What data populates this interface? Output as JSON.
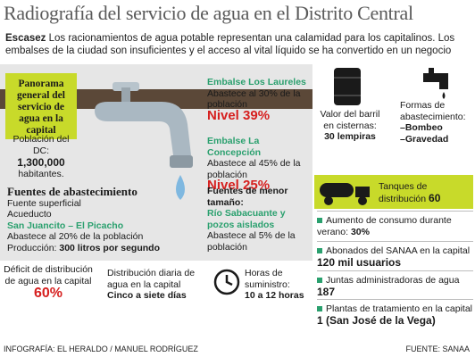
{
  "title": "Radiografía del servicio de agua en el Distrito Central",
  "intro": {
    "lead": "Escasez",
    "text": " Los racionamientos de agua potable representan una calamidad para los capitalinos. Los embalses de la ciudad son insuficientes y el acceso al vital líquido se ha convertido en un negocio"
  },
  "panorama": "Panorama general del servicio de agua en la capital",
  "poblacion": {
    "label": "Población del DC:",
    "value": "1,300,000",
    "unit": "habitantes."
  },
  "laureles": {
    "name": "Embalse Los Laureles",
    "desc": "Abastece al 30% de la población",
    "nivel": "Nivel 39%"
  },
  "concepcion": {
    "name": "Embalse La Concepción",
    "desc": "Abastece al 45% de la población",
    "nivel": "Nivel 25%"
  },
  "fuentes": {
    "heading": "Fuentes de abastecimiento",
    "l1": "Fuente superficial",
    "l2": "Acueducto",
    "green": "San Juancito – El Picacho",
    "l3": "Abastece al  20%  de la población",
    "prod_label": "Producción: ",
    "prod_value": "300 litros por segundo"
  },
  "menor": {
    "heading": "Fuentes de menor tamaño:",
    "green": "Río Sabacuante y pozos aislados",
    "desc": "Abastece al 5% de la población"
  },
  "deficit": {
    "label": "Déficit de distribución de agua en la capital",
    "value": "60%"
  },
  "distribucion": {
    "label": "Distribución diaria de agua en la capital",
    "value": "Cinco a siete días"
  },
  "horas": {
    "label": "Horas de suministro:",
    "value": "10 a 12 horas"
  },
  "barril": {
    "label": "Valor del barril en cisternas:",
    "value": "30 lempiras"
  },
  "formas": {
    "label": "Formas de abastecimiento:",
    "l1": "–Bombeo",
    "l2": "–Gravedad"
  },
  "tanques": {
    "label": "Tanques de distribución",
    "value": "60"
  },
  "consumo": {
    "label": "Aumento de consumo durante verano: ",
    "value": "30%"
  },
  "abonados": {
    "label": "Abonados del SANAA  en la capital ",
    "value": "120  mil usuarios"
  },
  "juntas": {
    "label": "Juntas administradoras de agua",
    "value": "187"
  },
  "plantas": {
    "label": "Plantas de tratamiento en la capital",
    "value": "1 (San José de la Vega)"
  },
  "footer": {
    "credit": "INFOGRAFÍA: EL HERALDO / MANUEL RODRÍGUEZ",
    "source": "FUENTE: SANAA"
  },
  "colors": {
    "green": "#2aa06e",
    "lime": "#c8da2a",
    "red": "#d6201f",
    "water": "#7fb8e0"
  }
}
